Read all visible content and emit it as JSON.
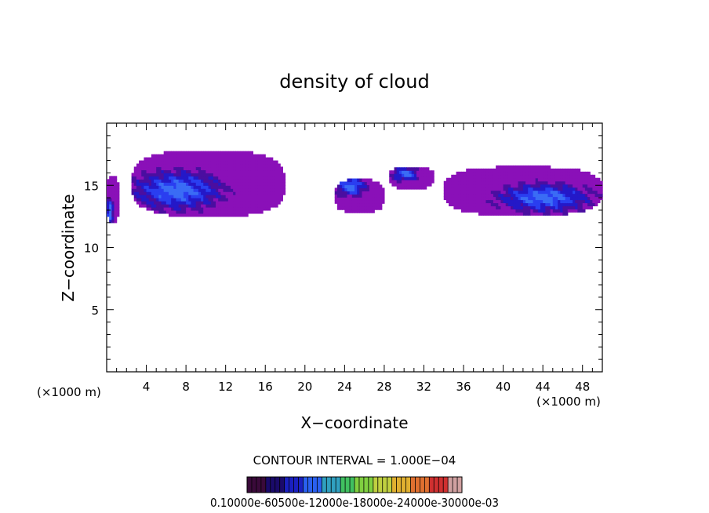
{
  "chart_data": {
    "type": "heatmap",
    "title": "density of cloud",
    "xlabel": "X−coordinate",
    "ylabel": "Z−coordinate",
    "x_unit_label": "(×1000 m)",
    "y_unit_label": "(×1000 m)",
    "xlim": [
      0,
      50
    ],
    "ylim": [
      0,
      20
    ],
    "x_ticks": [
      4,
      8,
      12,
      16,
      20,
      24,
      28,
      32,
      36,
      40,
      44,
      48
    ],
    "y_ticks": [
      5,
      10,
      15
    ],
    "contour_interval_label": "CONTOUR INTERVAL = 1.000E−04",
    "colorbar_labels_text": "0.10000e-60500e-12000e-18000e-24000e-30000e-03",
    "colormap": [
      "#3a0a3a",
      "#1a0a6a",
      "#1a20c0",
      "#2a60f0",
      "#30a0c0",
      "#40c060",
      "#80d040",
      "#c0d040",
      "#e0b030",
      "#e07030",
      "#d03030",
      "#d0a0a0"
    ],
    "cloud_regions": [
      {
        "name": "left-edge",
        "x": [
          0,
          1.2
        ],
        "z": [
          12.0,
          15.8
        ],
        "peak_core": [
          0.2,
          12.8
        ]
      },
      {
        "name": "main-left-anvil",
        "x": [
          2.5,
          18.0
        ],
        "z": [
          12.5,
          17.8
        ],
        "peak_core": [
          7.0,
          14.5
        ]
      },
      {
        "name": "mid-fragment",
        "x": [
          23.0,
          28.0
        ],
        "z": [
          12.8,
          15.5
        ],
        "peak_core": [
          24.5,
          14.8
        ]
      },
      {
        "name": "mid-upper-fragment",
        "x": [
          28.5,
          33.0
        ],
        "z": [
          14.7,
          16.5
        ],
        "peak_core": [
          30.0,
          15.8
        ]
      },
      {
        "name": "right-shelf",
        "x": [
          34.0,
          50.0
        ],
        "z": [
          12.6,
          16.5
        ],
        "peak_core": [
          44.0,
          13.9
        ]
      }
    ]
  }
}
